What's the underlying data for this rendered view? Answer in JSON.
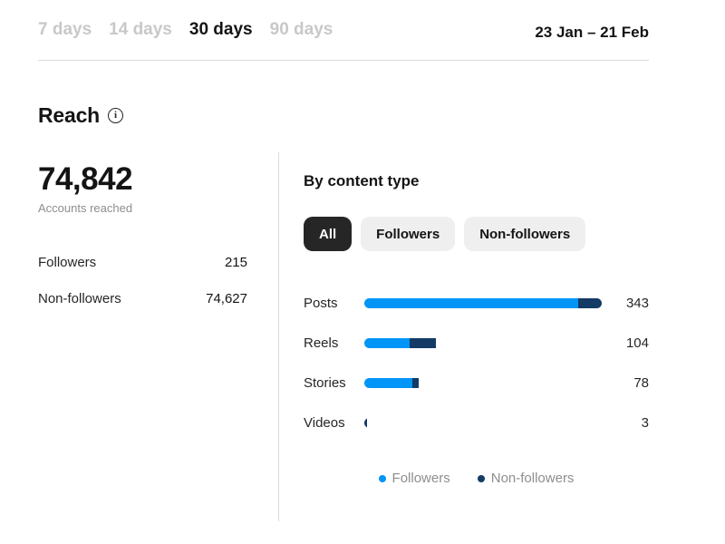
{
  "header": {
    "tabs": [
      {
        "label": "7 days",
        "active": false
      },
      {
        "label": "14 days",
        "active": false
      },
      {
        "label": "30 days",
        "active": true
      },
      {
        "label": "90 days",
        "active": false
      }
    ],
    "date_range": "23 Jan – 21 Feb"
  },
  "reach": {
    "title": "Reach",
    "info_icon_glyph": "i",
    "total": "74,842",
    "total_caption": "Accounts reached",
    "breakdown": [
      {
        "label": "Followers",
        "value": "215"
      },
      {
        "label": "Non-followers",
        "value": "74,627"
      }
    ]
  },
  "content_type": {
    "title": "By content type",
    "filters": [
      {
        "label": "All",
        "active": true
      },
      {
        "label": "Followers",
        "active": false
      },
      {
        "label": "Non-followers",
        "active": false
      }
    ]
  },
  "chart_data": {
    "type": "bar",
    "orientation": "horizontal",
    "title": "By content type",
    "categories": [
      "Posts",
      "Reels",
      "Stories",
      "Videos"
    ],
    "totals": [
      343,
      104,
      78,
      3
    ],
    "series": [
      {
        "name": "Followers",
        "color": "#0095f6",
        "values": [
          309,
          65,
          70,
          0
        ]
      },
      {
        "name": "Non-followers",
        "color": "#133b66",
        "values": [
          34,
          39,
          8,
          3
        ]
      }
    ],
    "max": 343,
    "legend_position": "bottom",
    "grid": false
  },
  "colors": {
    "accent_blue": "#0095f6",
    "navy": "#133b66",
    "inactive_tab": "#c8c8c8",
    "divider": "#dbdbdb",
    "secondary_text": "#8e8e8e",
    "chip_bg": "#efefef",
    "chip_active_bg": "#262626"
  }
}
